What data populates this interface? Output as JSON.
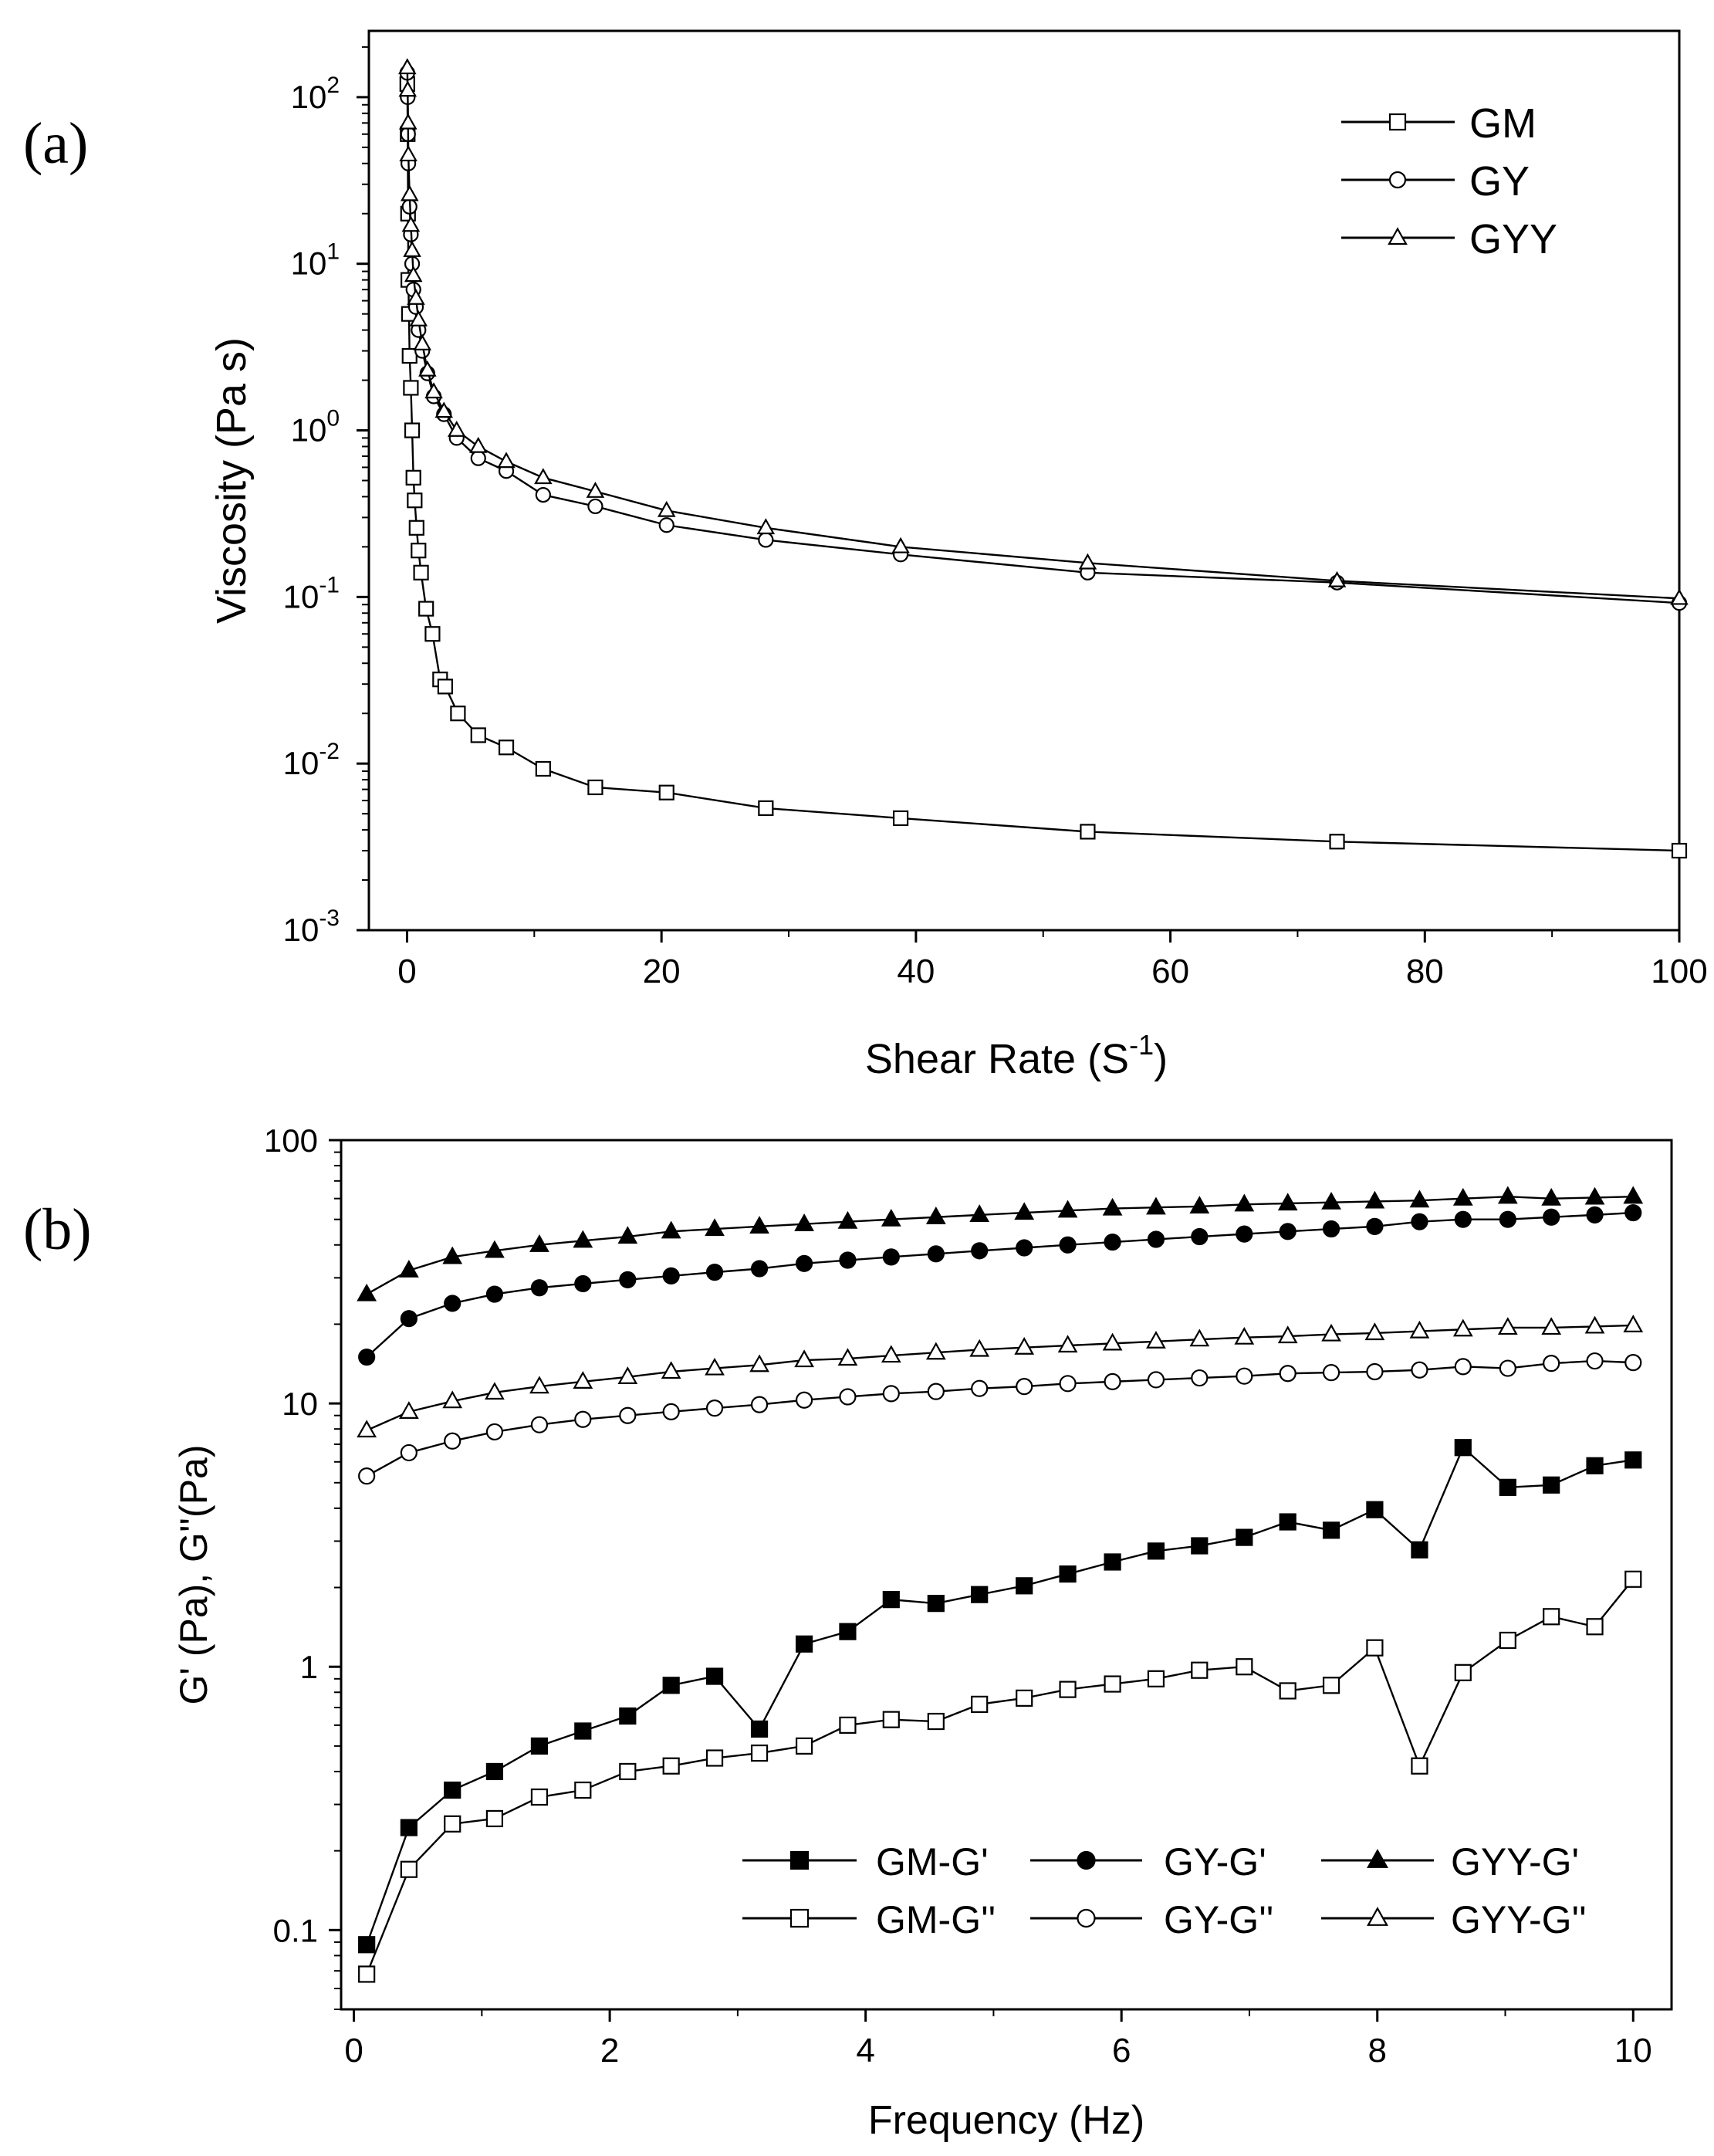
{
  "panels": {
    "a": {
      "letter": "(a)"
    },
    "b": {
      "letter": "(b)"
    }
  },
  "chart_data": [
    {
      "type": "line",
      "panel": "(a)",
      "xlabel": "Shear Rate (S",
      "xlabel_sup": "-1",
      "xlabel_end": ")",
      "ylabel": "Viscosity (Pa s)",
      "xlim": [
        -3,
        100
      ],
      "ylim": [
        0.001,
        250
      ],
      "yscale": "log",
      "grid": false,
      "legend_position": "top-right",
      "x_ticks": [
        "0",
        "20",
        "40",
        "60",
        "80",
        "100"
      ],
      "y_ticks": [
        {
          "base": "10",
          "exp": "2"
        },
        {
          "base": "10",
          "exp": "1"
        },
        {
          "base": "10",
          "exp": "0"
        },
        {
          "base": "10",
          "exp": "-1"
        },
        {
          "base": "10",
          "exp": "-2"
        },
        {
          "base": "10",
          "exp": "-3"
        }
      ],
      "series": [
        {
          "name": "GM",
          "marker": "square-open",
          "x": [
            0.02,
            0.05,
            0.08,
            0.1,
            0.15,
            0.2,
            0.3,
            0.4,
            0.5,
            0.6,
            0.75,
            0.9,
            1.1,
            1.5,
            2.0,
            2.6,
            3.0,
            4.0,
            5.6,
            7.8,
            10.7,
            14.8,
            20.4,
            28.2,
            38.8,
            53.5,
            73.1,
            100
          ],
          "y": [
            120,
            60,
            20,
            8,
            5,
            2.8,
            1.8,
            1.0,
            0.52,
            0.38,
            0.26,
            0.19,
            0.14,
            0.085,
            0.06,
            0.032,
            0.029,
            0.02,
            0.0148,
            0.0125,
            0.0093,
            0.0072,
            0.0067,
            0.0054,
            0.0047,
            0.0039,
            0.0034,
            0.003
          ]
        },
        {
          "name": "GY",
          "marker": "circle-open",
          "x": [
            0.02,
            0.05,
            0.08,
            0.1,
            0.2,
            0.3,
            0.4,
            0.5,
            0.7,
            0.9,
            1.2,
            1.6,
            2.1,
            2.9,
            3.9,
            5.6,
            7.8,
            10.7,
            14.8,
            20.4,
            28.2,
            38.8,
            53.5,
            73.1,
            100
          ],
          "y": [
            140,
            100,
            60,
            40,
            22,
            15,
            10,
            7,
            5.5,
            4,
            3,
            2.2,
            1.6,
            1.25,
            0.9,
            0.68,
            0.57,
            0.41,
            0.35,
            0.27,
            0.22,
            0.18,
            0.14,
            0.122,
            0.092
          ]
        },
        {
          "name": "GYY",
          "marker": "triangle-open",
          "x": [
            0.02,
            0.05,
            0.08,
            0.1,
            0.2,
            0.3,
            0.4,
            0.5,
            0.7,
            0.9,
            1.2,
            1.6,
            2.1,
            2.9,
            3.9,
            5.6,
            7.8,
            10.7,
            14.8,
            20.4,
            28.2,
            38.8,
            53.5,
            73.1,
            100
          ],
          "y": [
            150,
            110,
            70,
            45,
            26,
            17,
            12,
            8.5,
            6.2,
            4.6,
            3.3,
            2.3,
            1.7,
            1.3,
            1.0,
            0.8,
            0.65,
            0.52,
            0.43,
            0.33,
            0.26,
            0.2,
            0.16,
            0.125,
            0.098
          ]
        }
      ]
    },
    {
      "type": "line",
      "panel": "(b)",
      "xlabel": "Frequency (Hz)",
      "ylabel": "G' (Pa), G''(Pa)",
      "xlim": [
        -0.1,
        10.3
      ],
      "ylim": [
        0.05,
        100
      ],
      "yscale": "log",
      "grid": false,
      "legend_position": "bottom-right",
      "x_ticks": [
        "0",
        "2",
        "4",
        "6",
        "8",
        "10"
      ],
      "y_ticks": [
        "100",
        "10",
        "1",
        "0.1"
      ],
      "x": [
        0.1,
        0.43,
        0.77,
        1.1,
        1.45,
        1.79,
        2.14,
        2.48,
        2.82,
        3.17,
        3.52,
        3.86,
        4.2,
        4.55,
        4.89,
        5.24,
        5.58,
        5.93,
        6.27,
        6.61,
        6.96,
        7.3,
        7.64,
        7.98,
        8.33,
        8.67,
        9.02,
        9.36,
        9.7,
        10.0
      ],
      "series": [
        {
          "name": "GM-G'",
          "marker": "square-filled",
          "y": [
            0.088,
            0.245,
            0.34,
            0.4,
            0.5,
            0.57,
            0.65,
            0.85,
            0.92,
            0.58,
            1.22,
            1.36,
            1.8,
            1.74,
            1.88,
            2.03,
            2.25,
            2.5,
            2.75,
            2.88,
            3.1,
            3.55,
            3.3,
            3.95,
            2.78,
            6.8,
            4.8,
            4.9,
            5.8,
            6.1
          ]
        },
        {
          "name": "GY-G'",
          "marker": "circle-filled",
          "y": [
            15,
            21,
            24,
            26,
            27.5,
            28.5,
            29.5,
            30.5,
            31.5,
            32.5,
            34,
            35,
            36,
            37,
            38,
            39,
            40,
            41,
            42,
            43,
            44,
            45,
            46,
            47,
            49,
            50,
            50,
            51,
            52,
            53
          ]
        },
        {
          "name": "GYY-G'",
          "marker": "triangle-filled",
          "y": [
            26,
            32,
            36,
            38,
            40,
            41.5,
            43,
            45,
            46,
            47,
            48,
            49,
            50,
            51,
            52,
            53,
            54,
            55,
            55.5,
            56,
            57,
            57.5,
            58,
            58.5,
            59,
            60,
            61,
            60,
            60.5,
            61
          ]
        },
        {
          "name": "GM-G''",
          "marker": "square-open",
          "y": [
            0.068,
            0.17,
            0.253,
            0.265,
            0.32,
            0.34,
            0.4,
            0.42,
            0.45,
            0.47,
            0.5,
            0.6,
            0.63,
            0.62,
            0.72,
            0.76,
            0.82,
            0.86,
            0.9,
            0.97,
            1.0,
            0.81,
            0.85,
            1.18,
            0.42,
            0.95,
            1.26,
            1.55,
            1.42,
            2.15
          ]
        },
        {
          "name": "GY-G''",
          "marker": "circle-open",
          "y": [
            5.3,
            6.5,
            7.2,
            7.8,
            8.3,
            8.7,
            9.0,
            9.3,
            9.6,
            9.9,
            10.3,
            10.6,
            10.9,
            11.1,
            11.4,
            11.6,
            11.9,
            12.1,
            12.3,
            12.5,
            12.7,
            13.0,
            13.1,
            13.2,
            13.4,
            13.8,
            13.6,
            14.2,
            14.5,
            14.3
          ]
        },
        {
          "name": "GYY-G''",
          "marker": "triangle-open",
          "y": [
            7.9,
            9.3,
            10.2,
            11.0,
            11.6,
            12.1,
            12.6,
            13.2,
            13.6,
            14.0,
            14.6,
            14.8,
            15.2,
            15.6,
            16.0,
            16.3,
            16.6,
            16.9,
            17.2,
            17.5,
            17.8,
            18.0,
            18.3,
            18.5,
            18.8,
            19.1,
            19.4,
            19.4,
            19.6,
            19.8
          ]
        }
      ]
    }
  ]
}
